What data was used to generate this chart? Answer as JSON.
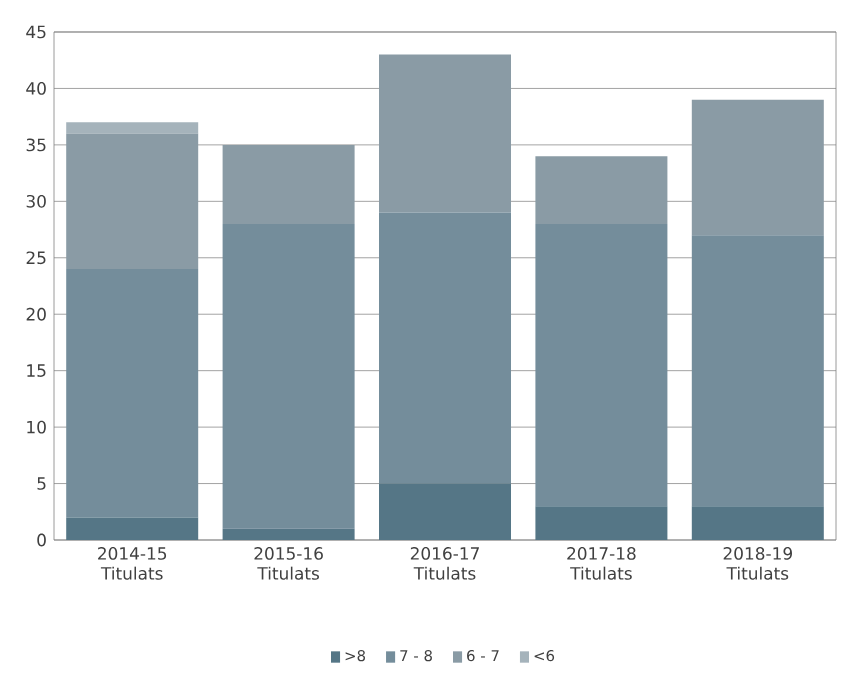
{
  "chart_data": {
    "type": "bar",
    "stacked": true,
    "categories": [
      "2014-15 Titulats",
      "2015-16 Titulats",
      "2016-17 Titulats",
      "2017-18 Titulats",
      "2018-19 Titulats"
    ],
    "series": [
      {
        "name": ">8",
        "color": "#557686",
        "values": [
          2,
          1,
          5,
          3,
          3
        ]
      },
      {
        "name": "7 - 8",
        "color": "#748d9b",
        "values": [
          22,
          27,
          24,
          25,
          24
        ]
      },
      {
        "name": "6 - 7",
        "color": "#8a9ba5",
        "values": [
          12,
          7,
          14,
          6,
          12
        ]
      },
      {
        "name": "<6",
        "color": "#a5b3bb",
        "values": [
          1,
          0,
          0,
          0,
          0
        ]
      }
    ],
    "ylim": [
      0,
      45
    ],
    "yticks": [
      0,
      5,
      10,
      15,
      20,
      25,
      30,
      35,
      40,
      45
    ],
    "grid": "y",
    "legend": "bottom"
  }
}
